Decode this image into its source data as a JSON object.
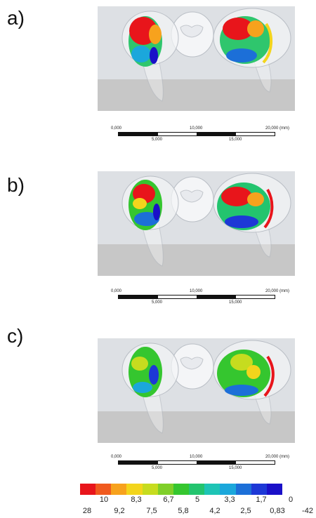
{
  "panels": [
    {
      "label": "a)"
    },
    {
      "label": "b)"
    },
    {
      "label": "c)"
    }
  ],
  "scalebar": {
    "top_ticks": [
      "0,000",
      "10,000",
      "20,000 (mm)"
    ],
    "bottom_ticks": [
      "5,000",
      "15,000"
    ]
  },
  "legend": {
    "colors": [
      "#e8151b",
      "#f05a1e",
      "#f7a21d",
      "#f3d51c",
      "#c6dc1f",
      "#7fcf29",
      "#35c62f",
      "#23c46e",
      "#1ec4b5",
      "#1ba7db",
      "#1c6fd8",
      "#1d38d6",
      "#1a10c8"
    ],
    "top_labels": [
      "10",
      "8,3",
      "6,7",
      "5",
      "3,3",
      "1,7",
      "0"
    ],
    "bottom_labels": [
      "28",
      "9,2",
      "7,5",
      "5,8",
      "4,2",
      "2,5",
      "0,83",
      "-42"
    ]
  }
}
